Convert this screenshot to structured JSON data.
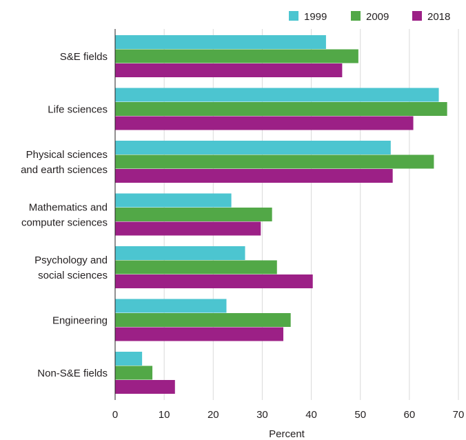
{
  "chart_data": {
    "type": "bar",
    "orientation": "horizontal",
    "categories": [
      [
        "S&E fields"
      ],
      [
        "Life sciences"
      ],
      [
        "Physical sciences",
        "and earth sciences"
      ],
      [
        "Mathematics and",
        "computer sciences"
      ],
      [
        "Psychology and",
        "social sciences"
      ],
      [
        "Engineering"
      ],
      [
        "Non-S&E fields"
      ]
    ],
    "series": [
      {
        "name": "1999",
        "color": "#4cc5d0",
        "values": [
          43.0,
          66.0,
          56.2,
          23.7,
          26.5,
          22.7,
          5.5
        ]
      },
      {
        "name": "2009",
        "color": "#52a847",
        "values": [
          49.6,
          67.7,
          65.0,
          32.0,
          33.0,
          35.8,
          7.6
        ]
      },
      {
        "name": "2018",
        "color": "#9c2086",
        "values": [
          46.3,
          60.8,
          56.6,
          29.7,
          40.3,
          34.3,
          12.2
        ]
      }
    ],
    "xlabel": "Percent",
    "ylabel": "",
    "xlim": [
      0,
      70
    ],
    "xticks": [
      0,
      10,
      20,
      30,
      40,
      50,
      60,
      70
    ],
    "grid": "vertical",
    "legend": "top-right"
  }
}
